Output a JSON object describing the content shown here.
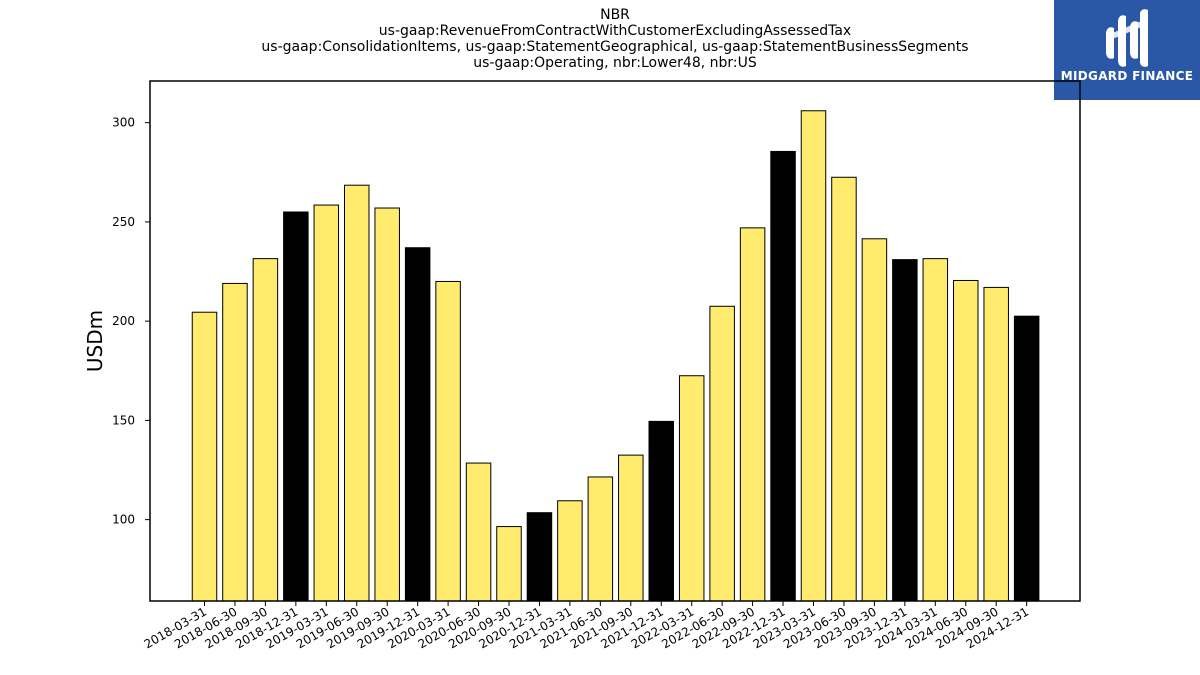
{
  "header": {
    "title_lines": [
      "NBR",
      "us-gaap:RevenueFromContractWithCustomerExcludingAssessedTax",
      "us-gaap:ConsolidationItems, us-gaap:StatementGeographical, us-gaap:StatementBusinessSegments",
      "us-gaap:Operating, nbr:Lower48, nbr:US"
    ]
  },
  "logo": {
    "name": "MIDGARD FINANCE",
    "icon": "midgard-finance-logo-icon",
    "background": "#2b57a7"
  },
  "chart_data": {
    "type": "bar",
    "ylabel": "USDm",
    "xlabel": "",
    "ylim": [
      59,
      321
    ],
    "yticks": [
      100,
      150,
      200,
      250,
      300
    ],
    "grid": false,
    "colors": {
      "quarter": "#ffec6e",
      "year_end": "#000000",
      "edge": "#000000"
    },
    "categories": [
      "2018-03-31",
      "2018-06-30",
      "2018-09-30",
      "2018-12-31",
      "2019-03-31",
      "2019-06-30",
      "2019-09-30",
      "2019-12-31",
      "2020-03-31",
      "2020-06-30",
      "2020-09-30",
      "2020-12-31",
      "2021-03-31",
      "2021-06-30",
      "2021-09-30",
      "2021-12-31",
      "2022-03-31",
      "2022-06-30",
      "2022-09-30",
      "2022-12-31",
      "2023-03-31",
      "2023-06-30",
      "2023-09-30",
      "2023-12-31",
      "2024-03-31",
      "2024-06-30",
      "2024-09-30",
      "2024-12-31"
    ],
    "values": [
      204.5,
      219,
      231.5,
      255,
      258.5,
      268.5,
      257,
      237,
      220,
      128.5,
      96.5,
      103.5,
      109.5,
      121.5,
      132.5,
      149.5,
      172.5,
      207.5,
      247,
      285.5,
      306,
      272.5,
      241.5,
      231,
      231.5,
      220.5,
      217,
      202.5
    ]
  }
}
